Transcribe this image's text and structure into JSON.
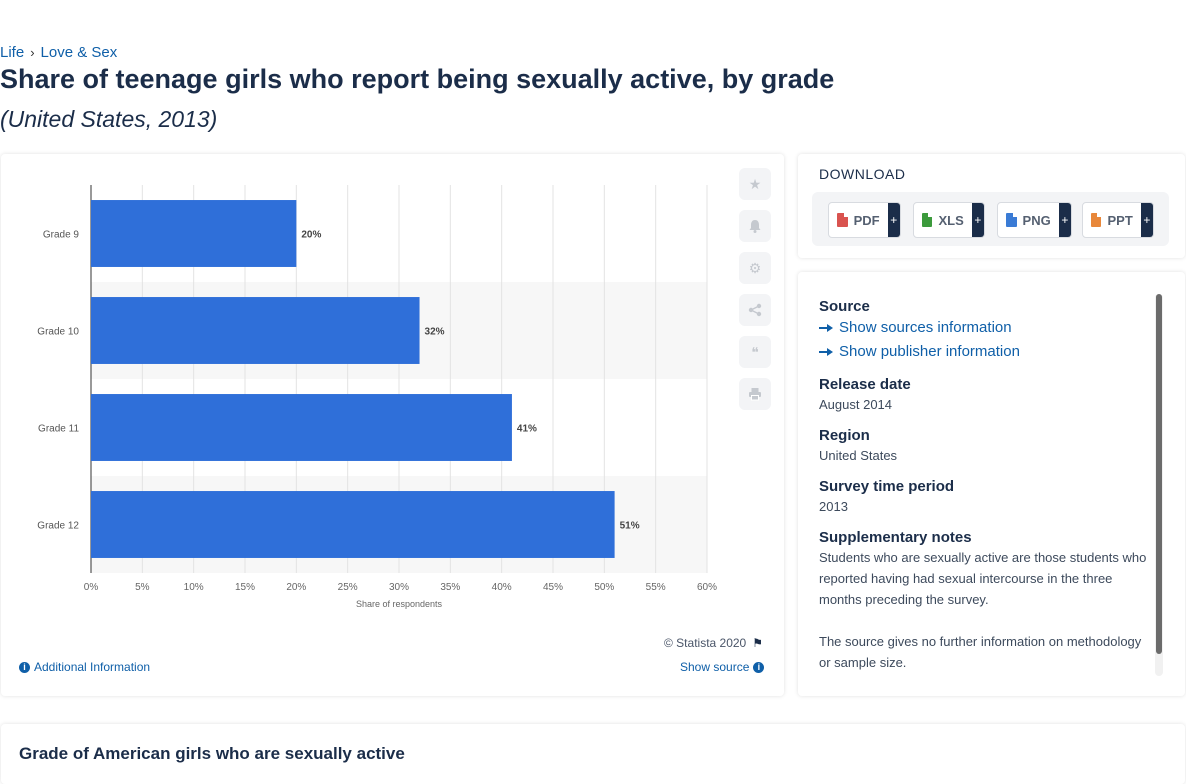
{
  "breadcrumb": {
    "items": [
      "Life",
      "Love & Sex"
    ]
  },
  "title": "Share of teenage girls who report being sexually active, by grade",
  "subtitle": "(United States, 2013)",
  "chart_data": {
    "type": "bar",
    "orientation": "horizontal",
    "categories": [
      "Grade 9",
      "Grade 10",
      "Grade 11",
      "Grade 12"
    ],
    "values": [
      20,
      32,
      41,
      51
    ],
    "data_labels": [
      "20%",
      "32%",
      "41%",
      "51%"
    ],
    "xlabel": "Share of respondents",
    "xlim": [
      0,
      60
    ],
    "xticks": [
      "0%",
      "5%",
      "10%",
      "15%",
      "20%",
      "25%",
      "30%",
      "35%",
      "40%",
      "45%",
      "50%",
      "55%",
      "60%"
    ],
    "bar_color": "#2f6fd9",
    "grid": true
  },
  "toolbar": {
    "icons": [
      "star-icon",
      "bell-icon",
      "gear-icon",
      "share-icon",
      "quote-icon",
      "print-icon"
    ]
  },
  "chart_footer": {
    "copyright": "© Statista 2020",
    "additional_info": "Additional Information",
    "show_source": "Show source"
  },
  "download": {
    "title": "DOWNLOAD",
    "buttons": [
      {
        "label": "PDF",
        "color": "#d9534f"
      },
      {
        "label": "XLS",
        "color": "#3c9a3c"
      },
      {
        "label": "PNG",
        "color": "#3a7bd5"
      },
      {
        "label": "PPT",
        "color": "#e8873a"
      }
    ]
  },
  "details": {
    "source_heading": "Source",
    "show_sources": "Show sources information",
    "show_publisher": "Show publisher information",
    "release_heading": "Release date",
    "release_value": "August 2014",
    "region_heading": "Region",
    "region_value": "United States",
    "period_heading": "Survey time period",
    "period_value": "2013",
    "notes_heading": "Supplementary notes",
    "notes_value": "Students who are sexually active are those students who reported having had sexual intercourse in the three months preceding the survey.",
    "notes_value2": "The source gives no further information on methodology or sample size."
  },
  "bottom": {
    "title": "Grade of American girls who are sexually active"
  }
}
